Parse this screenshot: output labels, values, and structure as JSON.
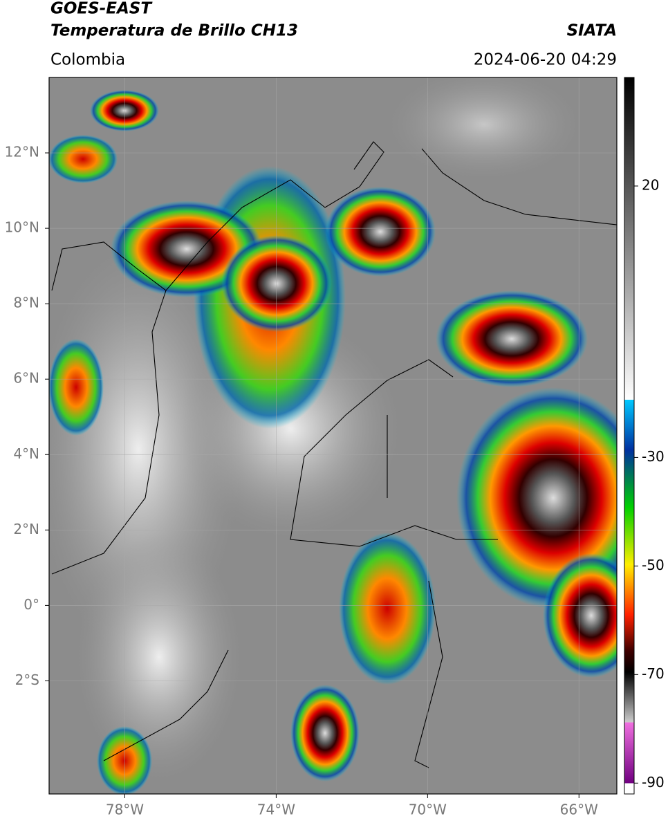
{
  "header": {
    "title": "GOES-EAST",
    "subtitle": "Temperatura de Brillo CH13",
    "source": "SIATA",
    "region": "Colombia",
    "datetime": "2024-06-20 04:29"
  },
  "map": {
    "xlim": [
      -80,
      -65
    ],
    "ylim": [
      -5,
      14
    ],
    "xticks": [
      {
        "value": -78,
        "label": "78°W"
      },
      {
        "value": -74,
        "label": "74°W"
      },
      {
        "value": -70,
        "label": "70°W"
      },
      {
        "value": -66,
        "label": "66°W"
      }
    ],
    "yticks": [
      {
        "value": 12,
        "label": "12°N"
      },
      {
        "value": 10,
        "label": "10°N"
      },
      {
        "value": 8,
        "label": "8°N"
      },
      {
        "value": 6,
        "label": "6°N"
      },
      {
        "value": 4,
        "label": "4°N"
      },
      {
        "value": 2,
        "label": "2°N"
      },
      {
        "value": 0,
        "label": "0°"
      },
      {
        "value": -2,
        "label": "2°S"
      }
    ]
  },
  "colorbar": {
    "lim": [
      -92,
      40
    ],
    "ticks": [
      20,
      -30,
      -50,
      -70,
      -90
    ]
  }
}
